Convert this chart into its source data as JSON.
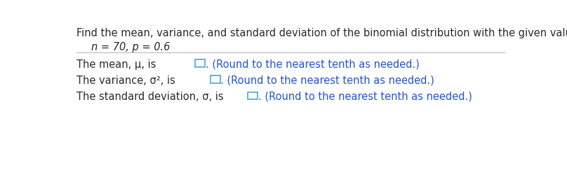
{
  "background_color": "#ffffff",
  "top_line_text": "Find the mean, variance, and standard deviation of the binomial distribution with the given values of n and p.",
  "indent_text": "n = 70, p = 0.6",
  "line1_prefix": "The mean, μ, is ",
  "line1_suffix": ". (Round to the nearest tenth as needed.)",
  "line2_prefix": "The variance, σ², is ",
  "line2_suffix": ". (Round to the nearest tenth as needed.)",
  "line3_prefix": "The standard deviation, σ, is ",
  "line3_suffix": ". (Round to the nearest tenth as needed.)",
  "text_color_black": "#2a2a2a",
  "text_color_blue": "#2255cc",
  "box_edge_color": "#44aacc",
  "separator_color": "#bbbbbb",
  "font_size": 10.5
}
